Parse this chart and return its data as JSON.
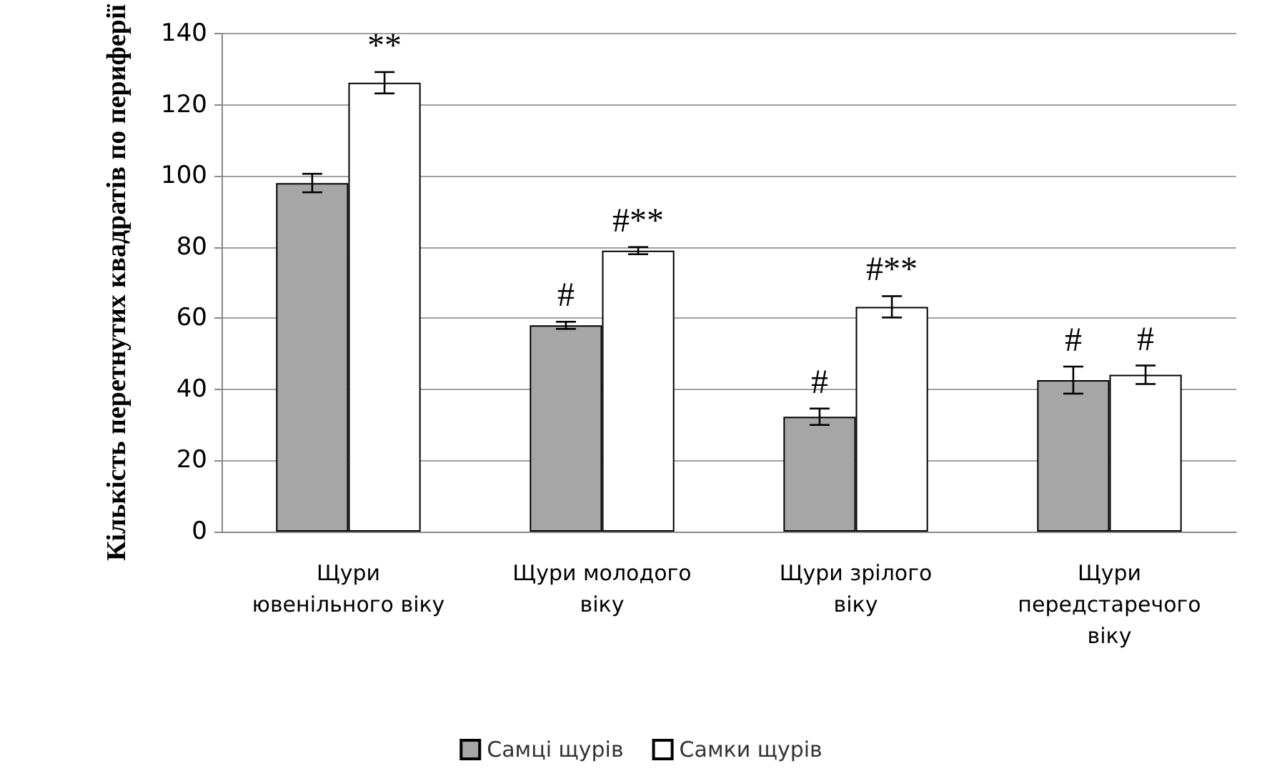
{
  "chart_data": {
    "type": "bar",
    "ylabel": "Кількість перетнутих квадратів по периферії",
    "categories": [
      "Щури ювенільного віку",
      "Щури молодого віку",
      "Щури зрілого віку",
      "Щури передстаречого віку"
    ],
    "series": [
      {
        "name": "Самці щурів",
        "color": "#a6a6a6",
        "values": [
          98,
          58,
          32.3,
          42.6
        ],
        "errors": [
          2.6,
          1,
          2.3,
          3.8
        ]
      },
      {
        "name": "Самки щурів",
        "color": "#ffffff",
        "values": [
          126.2,
          79,
          63.2,
          44.1
        ],
        "errors": [
          3,
          1,
          3,
          2.6
        ]
      }
    ],
    "ylim": [
      0,
      140
    ],
    "yticks": [
      0,
      20,
      40,
      60,
      80,
      100,
      120,
      140
    ],
    "grid": "y",
    "legend": "bottom",
    "annotations": [
      {
        "text": "**",
        "x": "Щури ювенільного віку",
        "y": 126.2
      },
      {
        "text": "#",
        "x": "Щури молодого віку",
        "y": 58
      },
      {
        "text": "#**",
        "x": "Щури молодого віку",
        "y": 79
      },
      {
        "text": "#",
        "x": "Щури зрілого віку",
        "y": 32.3
      },
      {
        "text": "#**",
        "x": "Щури зрілого віку",
        "y": 63.2
      },
      {
        "text": "#",
        "x": "Щури передстаречого віку",
        "y": 42.6
      },
      {
        "text": "#",
        "x": "Щури передстаречого віку",
        "y": 44.1
      }
    ]
  }
}
